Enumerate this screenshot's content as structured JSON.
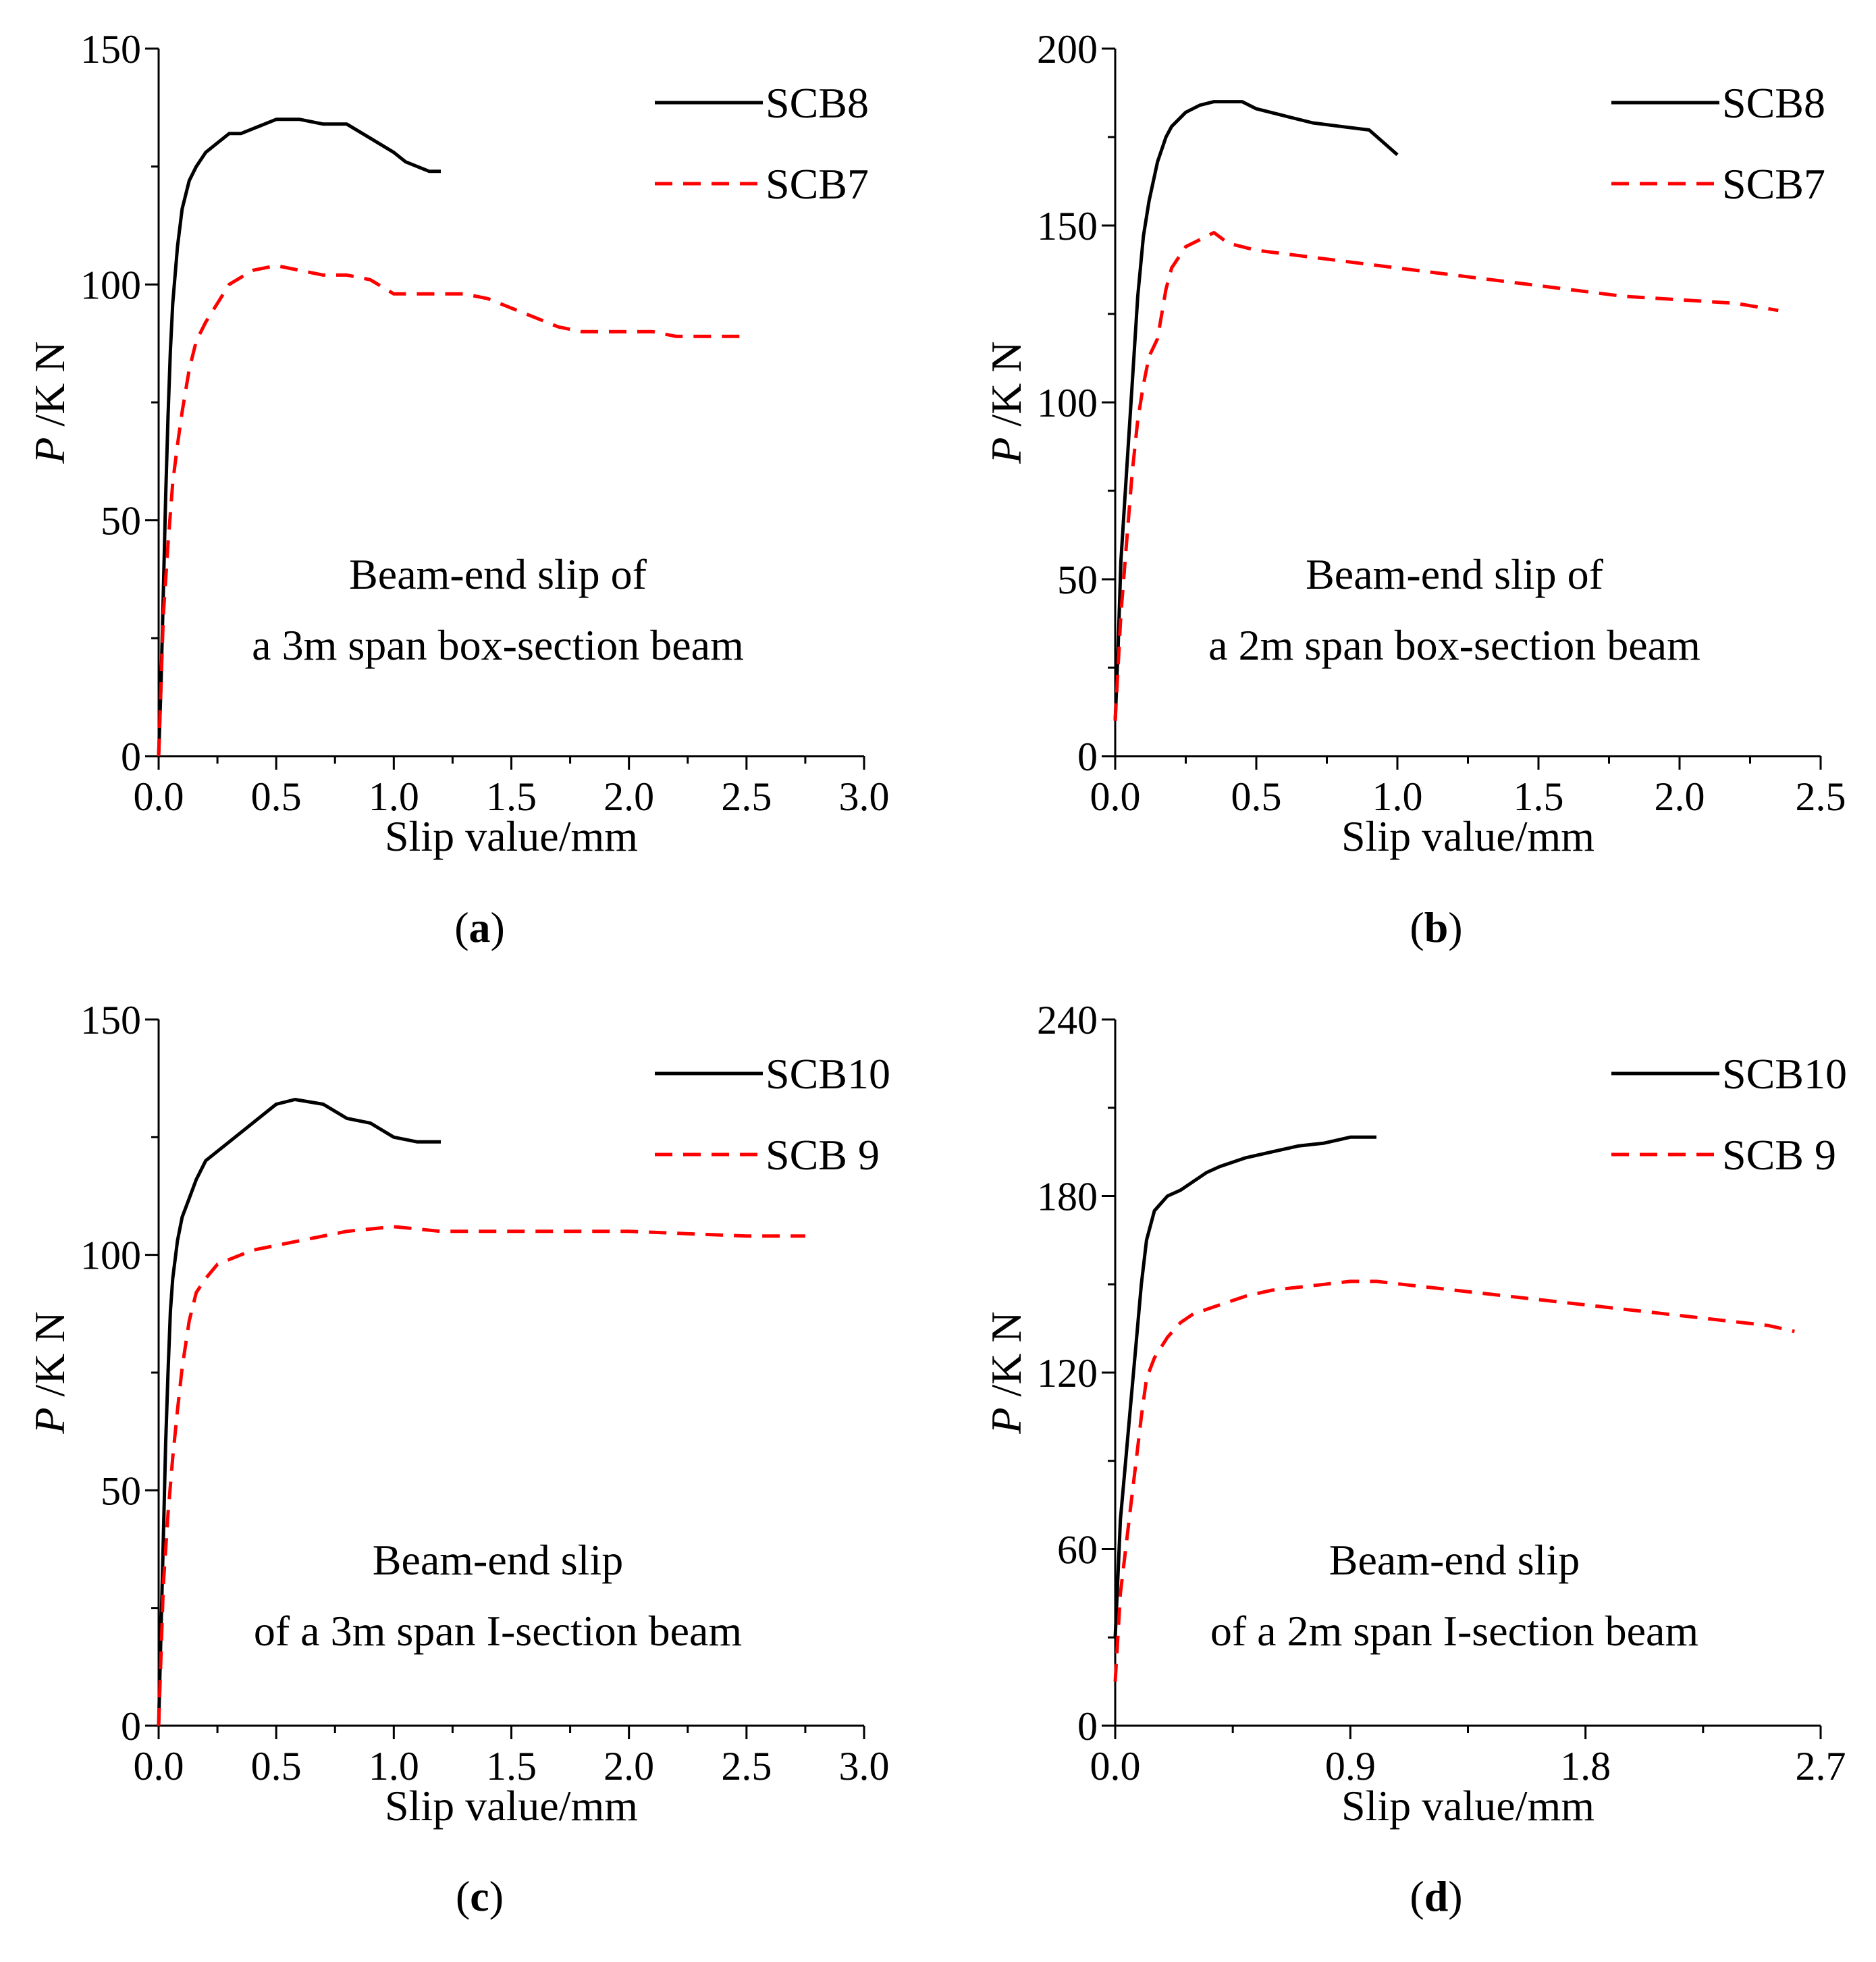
{
  "figure": {
    "background": "#ffffff",
    "axis_color": "#000000"
  },
  "chart_data": [
    {
      "panel": "a",
      "panel_label": "a",
      "type": "line",
      "xlabel": "Slip value/mm",
      "ylabel_italic": "P",
      "ylabel_rest": " /K N",
      "xlim": [
        0,
        3
      ],
      "ylim": [
        0,
        150
      ],
      "xticks": [
        0,
        0.5,
        1,
        1.5,
        2,
        2.5,
        3
      ],
      "xtick_labels": [
        "0.0",
        "0.5",
        "1.0",
        "1.5",
        "2.0",
        "2.5",
        "3.0"
      ],
      "yticks": [
        0,
        50,
        100,
        150
      ],
      "ytick_labels": [
        "0",
        "50",
        "100",
        "150"
      ],
      "annotation": [
        "Beam-end slip of",
        "a 3m span box-section beam"
      ],
      "legend_position": "top-right",
      "series": [
        {
          "name": "SCB8",
          "color": "#000000",
          "dash": "solid",
          "x": [
            0,
            0.01,
            0.02,
            0.03,
            0.04,
            0.05,
            0.06,
            0.08,
            0.1,
            0.13,
            0.16,
            0.2,
            0.25,
            0.3,
            0.35,
            0.4,
            0.45,
            0.5,
            0.6,
            0.7,
            0.8,
            0.9,
            1.0,
            1.05,
            1.1,
            1.15,
            1.2
          ],
          "y": [
            0,
            15,
            35,
            55,
            72,
            86,
            96,
            108,
            116,
            122,
            125,
            128,
            130,
            132,
            132,
            133,
            134,
            135,
            135,
            134,
            134,
            131,
            128,
            126,
            125,
            124,
            124
          ]
        },
        {
          "name": "SCB7",
          "color": "#ff0000",
          "dash": "dashed",
          "x": [
            0,
            0.01,
            0.02,
            0.04,
            0.06,
            0.08,
            0.1,
            0.13,
            0.16,
            0.2,
            0.25,
            0.3,
            0.4,
            0.5,
            0.6,
            0.7,
            0.8,
            0.9,
            1.0,
            1.1,
            1.2,
            1.3,
            1.4,
            1.5,
            1.6,
            1.7,
            1.8,
            1.9,
            2.0,
            2.1,
            2.2,
            2.3,
            2.4,
            2.5
          ],
          "y": [
            0,
            15,
            30,
            45,
            58,
            66,
            73,
            82,
            88,
            92,
            96,
            100,
            103,
            104,
            103,
            102,
            102,
            101,
            98,
            98,
            98,
            98,
            97,
            95,
            93,
            91,
            90,
            90,
            90,
            90,
            89,
            89,
            89,
            89
          ]
        }
      ]
    },
    {
      "panel": "b",
      "panel_label": "b",
      "type": "line",
      "xlabel": "Slip value/mm",
      "ylabel_italic": "P",
      "ylabel_rest": " /K N",
      "xlim": [
        0,
        2.5
      ],
      "ylim": [
        0,
        200
      ],
      "xticks": [
        0,
        0.5,
        1,
        1.5,
        2,
        2.5
      ],
      "xtick_labels": [
        "0.0",
        "0.5",
        "1.0",
        "1.5",
        "2.0",
        "2.5"
      ],
      "yticks": [
        0,
        50,
        100,
        150,
        200
      ],
      "ytick_labels": [
        "0",
        "50",
        "100",
        "150",
        "200"
      ],
      "annotation": [
        "Beam-end slip of",
        "a 2m span box-section beam"
      ],
      "legend_position": "top-right",
      "series": [
        {
          "name": "SCB8",
          "color": "#000000",
          "dash": "solid",
          "x": [
            0,
            0.01,
            0.02,
            0.04,
            0.06,
            0.08,
            0.1,
            0.12,
            0.15,
            0.18,
            0.2,
            0.25,
            0.3,
            0.35,
            0.4,
            0.45,
            0.5,
            0.6,
            0.7,
            0.8,
            0.9,
            1.0
          ],
          "y": [
            10,
            30,
            55,
            80,
            105,
            130,
            147,
            157,
            168,
            175,
            178,
            182,
            184,
            185,
            185,
            185,
            183,
            181,
            179,
            178,
            177,
            170
          ]
        },
        {
          "name": "SCB7",
          "color": "#ff0000",
          "dash": "dashed",
          "x": [
            0,
            0.01,
            0.02,
            0.04,
            0.06,
            0.08,
            0.1,
            0.12,
            0.15,
            0.18,
            0.2,
            0.25,
            0.3,
            0.35,
            0.4,
            0.5,
            0.6,
            0.8,
            1.0,
            1.2,
            1.4,
            1.6,
            1.8,
            2.0,
            2.2,
            2.35
          ],
          "y": [
            10,
            25,
            40,
            60,
            80,
            95,
            105,
            113,
            118,
            132,
            138,
            144,
            146,
            148,
            145,
            143,
            142,
            140,
            138,
            136,
            134,
            132,
            130,
            129,
            128,
            126
          ]
        }
      ]
    },
    {
      "panel": "c",
      "panel_label": "c",
      "type": "line",
      "xlabel": "Slip value/mm",
      "ylabel_italic": "P",
      "ylabel_rest": " /K N",
      "xlim": [
        0,
        3
      ],
      "ylim": [
        0,
        150
      ],
      "xticks": [
        0,
        0.5,
        1,
        1.5,
        2,
        2.5,
        3
      ],
      "xtick_labels": [
        "0.0",
        "0.5",
        "1.0",
        "1.5",
        "2.0",
        "2.5",
        "3.0"
      ],
      "yticks": [
        0,
        50,
        100,
        150
      ],
      "ytick_labels": [
        "0",
        "50",
        "100",
        "150"
      ],
      "annotation": [
        "Beam-end slip",
        "of a 3m span I-section beam"
      ],
      "legend_position": "top-right",
      "series": [
        {
          "name": "SCB10",
          "color": "#000000",
          "dash": "solid",
          "x": [
            0,
            0.01,
            0.02,
            0.03,
            0.04,
            0.05,
            0.06,
            0.08,
            0.1,
            0.13,
            0.16,
            0.2,
            0.3,
            0.4,
            0.5,
            0.58,
            0.7,
            0.8,
            0.9,
            1.0,
            1.1,
            1.2
          ],
          "y": [
            0,
            20,
            40,
            60,
            75,
            88,
            95,
            103,
            108,
            112,
            116,
            120,
            124,
            128,
            132,
            133,
            132,
            129,
            128,
            125,
            124,
            124
          ]
        },
        {
          "name": "SCB 9",
          "color": "#ff0000",
          "dash": "dashed",
          "x": [
            0,
            0.01,
            0.02,
            0.04,
            0.06,
            0.08,
            0.1,
            0.13,
            0.16,
            0.2,
            0.25,
            0.3,
            0.4,
            0.5,
            0.6,
            0.8,
            1.0,
            1.2,
            1.5,
            2.0,
            2.5,
            2.75
          ],
          "y": [
            0,
            15,
            30,
            45,
            57,
            67,
            76,
            86,
            92,
            95,
            98,
            99,
            101,
            102,
            103,
            105,
            106,
            105,
            105,
            105,
            104,
            104
          ]
        }
      ]
    },
    {
      "panel": "d",
      "panel_label": "d",
      "type": "line",
      "xlabel": "Slip value/mm",
      "ylabel_italic": "P",
      "ylabel_rest": " /K N",
      "xlim": [
        0,
        2.7
      ],
      "ylim": [
        0,
        240
      ],
      "xticks": [
        0,
        0.9,
        1.8,
        2.7
      ],
      "xtick_labels": [
        "0.0",
        "0.9",
        "1.8",
        "2.7"
      ],
      "yticks": [
        0,
        60,
        120,
        180,
        240
      ],
      "ytick_labels": [
        "0",
        "60",
        "120",
        "180",
        "240"
      ],
      "annotation": [
        "Beam-end slip",
        "of a 2m span I-section beam"
      ],
      "legend_position": "top-right",
      "series": [
        {
          "name": "SCB10",
          "color": "#000000",
          "dash": "solid",
          "x": [
            0,
            0.01,
            0.02,
            0.04,
            0.06,
            0.08,
            0.1,
            0.12,
            0.15,
            0.2,
            0.25,
            0.3,
            0.35,
            0.4,
            0.5,
            0.6,
            0.7,
            0.8,
            0.85,
            0.9,
            1.0
          ],
          "y": [
            30,
            50,
            70,
            90,
            110,
            130,
            150,
            165,
            175,
            180,
            182,
            185,
            188,
            190,
            193,
            195,
            197,
            198,
            199,
            200,
            200
          ]
        },
        {
          "name": "SCB 9",
          "color": "#ff0000",
          "dash": "dashed",
          "x": [
            0,
            0.01,
            0.02,
            0.04,
            0.06,
            0.08,
            0.1,
            0.12,
            0.15,
            0.2,
            0.25,
            0.3,
            0.4,
            0.5,
            0.6,
            0.7,
            0.8,
            0.9,
            1.0,
            1.1,
            1.3,
            1.5,
            1.7,
            1.9,
            2.1,
            2.3,
            2.5,
            2.6
          ],
          "y": [
            15,
            30,
            45,
            60,
            75,
            90,
            105,
            118,
            125,
            132,
            137,
            140,
            143,
            146,
            148,
            149,
            150,
            151,
            151,
            150,
            148,
            146,
            144,
            142,
            140,
            138,
            136,
            134
          ]
        }
      ]
    }
  ]
}
